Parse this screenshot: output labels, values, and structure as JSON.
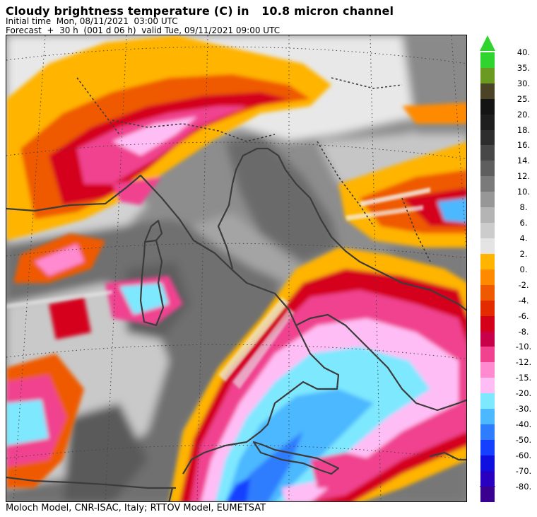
{
  "header": {
    "title": "Cloudy brightness temperature (C) in   10.8 micron channel",
    "initial": "Initial time  Mon, 08/11/2021  03:00 UTC",
    "forecast": "Forecast  +  30 h  (001 d 06 h)  valid Tue, 09/11/2021 09:00 UTC"
  },
  "footer": {
    "credit": "Moloch Model, CNR-ISAC, Italy; RTTOV Model, EUMETSAT"
  },
  "legend": {
    "warm_section": [
      {
        "label": "40.",
        "color": "#2fd42f"
      },
      {
        "label": "35.",
        "color": "#6b9a23"
      },
      {
        "label": "30.",
        "color": "#4a4326"
      },
      {
        "label": "25.",
        "color": "#141414"
      },
      {
        "label": "20.",
        "color": "#1e1e1e"
      },
      {
        "label": "18.",
        "color": "#2d2d2d"
      },
      {
        "label": "16.",
        "color": "#474747"
      },
      {
        "label": "14.",
        "color": "#5e5e5e"
      },
      {
        "label": "12.",
        "color": "#7a7a7a"
      },
      {
        "label": "10.",
        "color": "#979797"
      },
      {
        "label": "8.",
        "color": "#b4b4b4"
      },
      {
        "label": "6.",
        "color": "#cccccc"
      },
      {
        "label": "4.",
        "color": "#e4e4e4"
      }
    ],
    "cold_section": [
      {
        "label": "2.",
        "color": "#ffb400"
      },
      {
        "label": "0.",
        "color": "#ff8a00"
      },
      {
        "label": "-2.",
        "color": "#ef5a00"
      },
      {
        "label": "-4.",
        "color": "#e32b00"
      },
      {
        "label": "-6.",
        "color": "#d4001a"
      },
      {
        "label": "-8.",
        "color": "#c8004a"
      },
      {
        "label": "-10.",
        "color": "#f0428f"
      },
      {
        "label": "-12.",
        "color": "#ff8ad0"
      },
      {
        "label": "-15.",
        "color": "#ffbdf5"
      },
      {
        "label": "-20.",
        "color": "#7ee8ff"
      },
      {
        "label": "-30.",
        "color": "#4bb8ff"
      },
      {
        "label": "-40.",
        "color": "#2f7dff"
      },
      {
        "label": "-50.",
        "color": "#1540ff"
      },
      {
        "label": "-60.",
        "color": "#0f10e0"
      },
      {
        "label": "-70.",
        "color": "#2a00c0"
      },
      {
        "label": "-80.",
        "color": "#3a0090"
      }
    ]
  }
}
